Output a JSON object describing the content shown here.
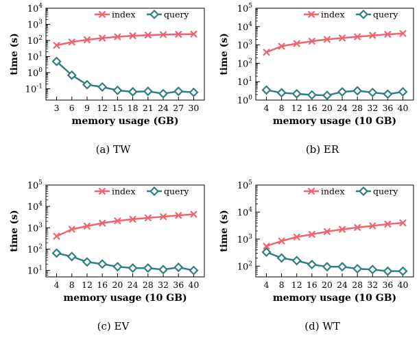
{
  "chart_data": [
    {
      "type": "line",
      "caption": "(a)  TW",
      "xlabel": "memory usage (GB)",
      "ylabel": "time (s)",
      "yscale": "log",
      "ylim": [
        0.02,
        10000
      ],
      "x": [
        3,
        6,
        9,
        12,
        15,
        18,
        21,
        24,
        27,
        30
      ],
      "xticks": [
        "3",
        "6",
        "9",
        "12",
        "15",
        "18",
        "21",
        "24",
        "27",
        "30"
      ],
      "yticks": [
        {
          "value": 0.1,
          "base": "10",
          "exp": "-1"
        },
        {
          "value": 1,
          "base": "10",
          "exp": "0"
        },
        {
          "value": 10,
          "base": "10",
          "exp": "1"
        },
        {
          "value": 100,
          "base": "10",
          "exp": "2"
        },
        {
          "value": 1000,
          "base": "10",
          "exp": "3"
        },
        {
          "value": 10000,
          "base": "10",
          "exp": "4"
        }
      ],
      "legend_position": "top-right",
      "series": [
        {
          "name": "index",
          "color": "#f0626c",
          "marker": "x",
          "values": [
            50,
            80,
            110,
            140,
            170,
            195,
            215,
            230,
            240,
            250
          ]
        },
        {
          "name": "query",
          "color": "#2f7f7f",
          "marker": "diamond",
          "values": [
            5,
            0.7,
            0.18,
            0.13,
            0.08,
            0.065,
            0.07,
            0.05,
            0.07,
            0.06
          ]
        }
      ]
    },
    {
      "type": "line",
      "caption": "(b)  ER",
      "xlabel": "memory usage (10 GB)",
      "ylabel": "time (s)",
      "yscale": "log",
      "ylim": [
        1,
        100000
      ],
      "x": [
        4,
        8,
        12,
        16,
        20,
        24,
        28,
        32,
        36,
        40
      ],
      "xticks": [
        "4",
        "8",
        "12",
        "16",
        "20",
        "24",
        "28",
        "32",
        "36",
        "40"
      ],
      "yticks": [
        {
          "value": 1,
          "base": "10",
          "exp": "0"
        },
        {
          "value": 10,
          "base": "10",
          "exp": "1"
        },
        {
          "value": 100,
          "base": "10",
          "exp": "2"
        },
        {
          "value": 1000,
          "base": "10",
          "exp": "3"
        },
        {
          "value": 10000,
          "base": "10",
          "exp": "4"
        },
        {
          "value": 100000,
          "base": "10",
          "exp": "5"
        }
      ],
      "legend_position": "top-right",
      "series": [
        {
          "name": "index",
          "color": "#f0626c",
          "marker": "x",
          "values": [
            400,
            850,
            1200,
            1600,
            2000,
            2400,
            2800,
            3300,
            3800,
            4200
          ]
        },
        {
          "name": "query",
          "color": "#2f7f7f",
          "marker": "diamond",
          "values": [
            3.5,
            2.5,
            2.2,
            1.9,
            1.8,
            2.8,
            3.2,
            2.6,
            2.1,
            2.8
          ]
        }
      ]
    },
    {
      "type": "line",
      "caption": "(c)  EV",
      "xlabel": "memory usage (10 GB)",
      "ylabel": "time (s)",
      "yscale": "log",
      "ylim": [
        5,
        100000
      ],
      "x": [
        4,
        8,
        12,
        16,
        20,
        24,
        28,
        32,
        36,
        40
      ],
      "xticks": [
        "4",
        "8",
        "12",
        "16",
        "20",
        "24",
        "28",
        "32",
        "36",
        "40"
      ],
      "yticks": [
        {
          "value": 10,
          "base": "10",
          "exp": "1"
        },
        {
          "value": 100,
          "base": "10",
          "exp": "2"
        },
        {
          "value": 1000,
          "base": "10",
          "exp": "3"
        },
        {
          "value": 10000,
          "base": "10",
          "exp": "4"
        },
        {
          "value": 100000,
          "base": "10",
          "exp": "5"
        }
      ],
      "legend_position": "top-right",
      "series": [
        {
          "name": "index",
          "color": "#f0626c",
          "marker": "x",
          "values": [
            400,
            850,
            1200,
            1650,
            2100,
            2500,
            2900,
            3300,
            3800,
            4300
          ]
        },
        {
          "name": "query",
          "color": "#2f7f7f",
          "marker": "diamond",
          "values": [
            65,
            45,
            25,
            20,
            15,
            13,
            13,
            11,
            14,
            10
          ]
        }
      ]
    },
    {
      "type": "line",
      "caption": "(d)  WT",
      "xlabel": "memory usage (10 GB)",
      "ylabel": "time (s)",
      "yscale": "log",
      "ylim": [
        40,
        100000
      ],
      "x": [
        4,
        8,
        12,
        16,
        20,
        24,
        28,
        32,
        36,
        40
      ],
      "xticks": [
        "4",
        "8",
        "12",
        "16",
        "20",
        "24",
        "28",
        "32",
        "36",
        "40"
      ],
      "yticks": [
        {
          "value": 100,
          "base": "10",
          "exp": "2"
        },
        {
          "value": 1000,
          "base": "10",
          "exp": "3"
        },
        {
          "value": 10000,
          "base": "10",
          "exp": "4"
        },
        {
          "value": 100000,
          "base": "10",
          "exp": "5"
        }
      ],
      "legend_position": "top-right",
      "series": [
        {
          "name": "index",
          "color": "#f0626c",
          "marker": "x",
          "values": [
            550,
            850,
            1200,
            1500,
            1900,
            2300,
            2700,
            3100,
            3600,
            4000
          ]
        },
        {
          "name": "query",
          "color": "#2f7f7f",
          "marker": "diamond",
          "values": [
            330,
            200,
            160,
            115,
            95,
            95,
            80,
            75,
            65,
            65
          ]
        }
      ]
    }
  ]
}
